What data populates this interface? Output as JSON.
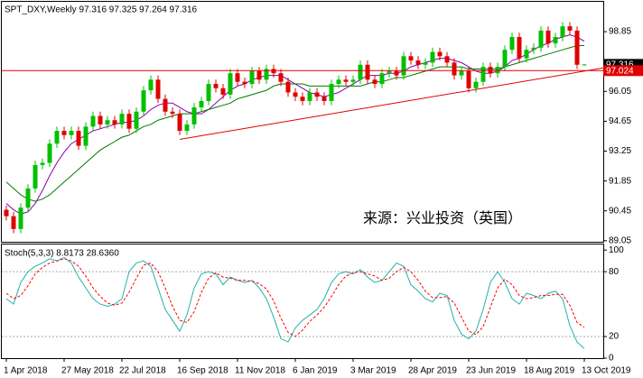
{
  "chart_data": [
    {
      "type": "candlestick",
      "title": "SPT_DXY,Weekly  97.316 97.325 97.264 97.316",
      "annotation": "来源：兴业投资（英国）",
      "categories": [
        "1 Apr 2018",
        null,
        null,
        null,
        null,
        null,
        null,
        null,
        "27 May 2018",
        null,
        null,
        null,
        null,
        null,
        null,
        null,
        "22 Jul 2018",
        null,
        null,
        null,
        null,
        null,
        null,
        null,
        "16 Sep 2018",
        null,
        null,
        null,
        null,
        null,
        null,
        null,
        "11 Nov 2018",
        null,
        null,
        null,
        null,
        null,
        null,
        null,
        "6 Jan 2019",
        null,
        null,
        null,
        null,
        null,
        null,
        null,
        "3 Mar 2019",
        null,
        null,
        null,
        null,
        null,
        null,
        null,
        "28 Apr 2019",
        null,
        null,
        null,
        null,
        null,
        null,
        null,
        "23 Jun 2019",
        null,
        null,
        null,
        null,
        null,
        null,
        null,
        "18 Aug 2019",
        null,
        null,
        null,
        null,
        null,
        null,
        null,
        "13 Oct 2019"
      ],
      "open": [
        90.5,
        90.2,
        89.6,
        90.6,
        91.5,
        92.6,
        92.7,
        93.6,
        94.2,
        94.0,
        94.2,
        93.5,
        94.4,
        94.9,
        94.5,
        94.7,
        94.5,
        95.0,
        94.3,
        95.1,
        96.1,
        96.6,
        95.7,
        95.1,
        95.0,
        94.2,
        94.5,
        95.3,
        95.6,
        96.4,
        96.2,
        95.9,
        96.9,
        96.5,
        96.4,
        97.0,
        96.6,
        97.1,
        96.9,
        96.5,
        96.0,
        95.8,
        95.6,
        96.0,
        95.8,
        95.6,
        96.4,
        96.6,
        96.5,
        96.6,
        97.3,
        96.6,
        96.4,
        96.9,
        97.0,
        96.8,
        97.7,
        97.5,
        97.3,
        97.4,
        97.9,
        97.7,
        97.4,
        96.8,
        97.0,
        96.2,
        96.5,
        97.2,
        96.9,
        97.2,
        98.0,
        98.6,
        97.6,
        98.0,
        98.1,
        98.9,
        98.3,
        98.6,
        99.1,
        98.9,
        97.316
      ],
      "high": [
        90.7,
        90.4,
        90.8,
        91.7,
        92.8,
        92.9,
        93.8,
        94.4,
        94.4,
        94.4,
        94.4,
        94.6,
        95.1,
        95.1,
        94.9,
        94.9,
        95.2,
        95.2,
        95.3,
        96.3,
        96.8,
        96.8,
        95.9,
        95.3,
        95.2,
        94.7,
        95.5,
        95.8,
        96.6,
        96.6,
        96.4,
        97.1,
        97.1,
        96.7,
        97.2,
        97.2,
        97.3,
        97.3,
        97.1,
        96.7,
        96.2,
        96.0,
        96.2,
        96.2,
        96.0,
        96.6,
        96.8,
        96.8,
        96.8,
        97.5,
        97.5,
        96.8,
        97.1,
        97.2,
        97.2,
        97.9,
        97.9,
        97.7,
        97.6,
        98.1,
        98.1,
        97.9,
        97.6,
        97.2,
        97.2,
        96.7,
        97.4,
        97.4,
        97.4,
        98.2,
        98.8,
        98.8,
        98.2,
        98.3,
        99.1,
        99.1,
        98.8,
        99.3,
        99.3,
        99.1,
        97.325
      ],
      "low": [
        90.0,
        89.4,
        89.4,
        90.4,
        91.3,
        92.4,
        92.5,
        93.4,
        93.8,
        93.8,
        93.3,
        93.3,
        94.2,
        94.3,
        94.3,
        94.3,
        94.3,
        94.1,
        94.1,
        94.9,
        95.9,
        95.5,
        94.9,
        94.8,
        94.0,
        94.0,
        94.3,
        95.1,
        95.4,
        96.0,
        95.7,
        95.7,
        96.3,
        96.2,
        96.2,
        96.4,
        96.4,
        96.7,
        96.3,
        95.8,
        95.6,
        95.4,
        95.4,
        95.6,
        95.4,
        95.4,
        96.2,
        96.3,
        96.3,
        96.4,
        96.4,
        96.2,
        96.2,
        96.7,
        96.6,
        96.6,
        97.3,
        97.1,
        97.1,
        97.2,
        97.5,
        97.2,
        96.6,
        96.6,
        96.0,
        96.0,
        96.3,
        96.7,
        96.7,
        97.0,
        97.8,
        97.4,
        97.4,
        97.8,
        97.9,
        98.1,
        98.1,
        98.4,
        98.7,
        97.1,
        97.264
      ],
      "close": [
        90.2,
        89.6,
        90.6,
        91.5,
        92.6,
        92.7,
        93.6,
        94.2,
        94.0,
        94.2,
        93.5,
        94.4,
        94.9,
        94.5,
        94.7,
        94.5,
        95.0,
        94.3,
        95.1,
        96.1,
        96.6,
        95.7,
        95.1,
        95.0,
        94.2,
        94.5,
        95.3,
        95.6,
        96.4,
        96.2,
        95.9,
        96.9,
        96.5,
        96.4,
        97.0,
        96.6,
        97.1,
        96.9,
        96.5,
        96.0,
        95.8,
        95.6,
        96.0,
        95.8,
        95.6,
        96.4,
        96.6,
        96.5,
        96.6,
        97.3,
        96.6,
        96.4,
        96.9,
        97.0,
        96.8,
        97.7,
        97.5,
        97.3,
        97.4,
        97.9,
        97.7,
        97.4,
        96.8,
        97.0,
        96.2,
        96.5,
        97.2,
        96.9,
        97.2,
        98.0,
        98.6,
        97.6,
        98.0,
        98.1,
        98.9,
        98.3,
        98.6,
        99.1,
        98.9,
        97.3,
        97.316
      ],
      "up_color": "#00c000",
      "down_color": "#e00000",
      "lines": [
        {
          "color": "#8a00b0",
          "values": [
            90.8,
            90.5,
            90.3,
            90.4,
            90.8,
            91.4,
            92.1,
            92.7,
            93.2,
            93.6,
            93.8,
            94.0,
            94.2,
            94.3,
            94.4,
            94.5,
            94.6,
            94.6,
            94.7,
            94.9,
            95.2,
            95.4,
            95.5,
            95.5,
            95.3,
            95.1,
            95.0,
            95.0,
            95.2,
            95.5,
            95.8,
            96.1,
            96.3,
            96.4,
            96.6,
            96.7,
            96.8,
            96.8,
            96.8,
            96.6,
            96.4,
            96.2,
            96.0,
            95.9,
            95.8,
            95.9,
            96.0,
            96.2,
            96.4,
            96.6,
            96.8,
            96.8,
            96.8,
            96.9,
            96.9,
            97.0,
            97.2,
            97.3,
            97.4,
            97.5,
            97.6,
            97.6,
            97.5,
            97.4,
            97.2,
            97.0,
            96.9,
            96.9,
            97.0,
            97.2,
            97.5,
            97.6,
            97.8,
            98.0,
            98.2,
            98.3,
            98.5,
            98.6,
            98.7,
            98.6,
            98.4
          ]
        },
        {
          "color": "#007a00",
          "values": [
            91.8,
            91.5,
            91.2,
            91.0,
            90.9,
            91.0,
            91.2,
            91.5,
            91.8,
            92.1,
            92.4,
            92.7,
            93.0,
            93.3,
            93.5,
            93.7,
            93.9,
            94.0,
            94.2,
            94.4,
            94.5,
            94.7,
            94.8,
            94.9,
            95.0,
            95.0,
            95.0,
            95.1,
            95.2,
            95.3,
            95.4,
            95.5,
            95.7,
            95.8,
            95.9,
            96.0,
            96.1,
            96.3,
            96.4,
            96.4,
            96.4,
            96.4,
            96.3,
            96.3,
            96.3,
            96.3,
            96.3,
            96.3,
            96.3,
            96.3,
            96.4,
            96.5,
            96.5,
            96.6,
            96.7,
            96.7,
            96.8,
            96.9,
            97.0,
            97.1,
            97.2,
            97.2,
            97.2,
            97.2,
            97.1,
            97.1,
            97.1,
            97.1,
            97.1,
            97.2,
            97.3,
            97.4,
            97.5,
            97.6,
            97.7,
            97.8,
            97.9,
            98.0,
            98.1,
            98.2,
            98.2
          ]
        }
      ],
      "trendline": {
        "start": "16 Sep 2018",
        "values": [
          93.8,
          97.15
        ],
        "color": "#e00000"
      },
      "price_marks": [
        {
          "value": 97.316,
          "color": "#000000",
          "line": false
        },
        {
          "value": 97.024,
          "color": "#e00000",
          "line": true
        }
      ],
      "ylim": [
        89.0,
        100.25
      ],
      "yticks": [
        89.05,
        90.45,
        91.85,
        93.25,
        94.65,
        96.05,
        98.85
      ]
    },
    {
      "type": "line",
      "title": "Stoch(5,3,3) 8.8173 28.6360",
      "series": [
        {
          "color": "#20b2aa",
          "dash": false,
          "values": [
            55,
            50,
            70,
            80,
            85,
            88,
            92,
            90,
            93,
            88,
            75,
            65,
            55,
            50,
            48,
            50,
            55,
            80,
            88,
            90,
            85,
            65,
            45,
            35,
            25,
            40,
            65,
            78,
            80,
            78,
            68,
            75,
            72,
            70,
            72,
            65,
            55,
            38,
            18,
            15,
            28,
            35,
            40,
            45,
            55,
            70,
            78,
            80,
            78,
            82,
            75,
            70,
            72,
            80,
            88,
            85,
            68,
            62,
            55,
            52,
            60,
            58,
            35,
            22,
            18,
            25,
            45,
            70,
            80,
            70,
            55,
            50,
            60,
            58,
            55,
            60,
            62,
            55,
            30,
            15,
            8.8173
          ]
        },
        {
          "color": "#ff0000",
          "dash": true,
          "values": [
            60,
            55,
            58,
            67,
            78,
            84,
            88,
            90,
            92,
            90,
            85,
            76,
            65,
            57,
            51,
            49,
            51,
            61,
            74,
            86,
            88,
            80,
            65,
            48,
            35,
            33,
            43,
            61,
            74,
            79,
            75,
            74,
            72,
            72,
            71,
            69,
            64,
            53,
            37,
            24,
            20,
            26,
            34,
            40,
            47,
            57,
            68,
            76,
            79,
            80,
            78,
            76,
            72,
            74,
            80,
            84,
            80,
            72,
            62,
            56,
            56,
            57,
            51,
            38,
            25,
            22,
            29,
            47,
            65,
            73,
            68,
            58,
            55,
            56,
            58,
            58,
            59,
            59,
            49,
            33,
            28.636
          ]
        }
      ],
      "ylim": [
        0,
        106
      ],
      "yticks": [
        0,
        20,
        80,
        100
      ]
    }
  ]
}
